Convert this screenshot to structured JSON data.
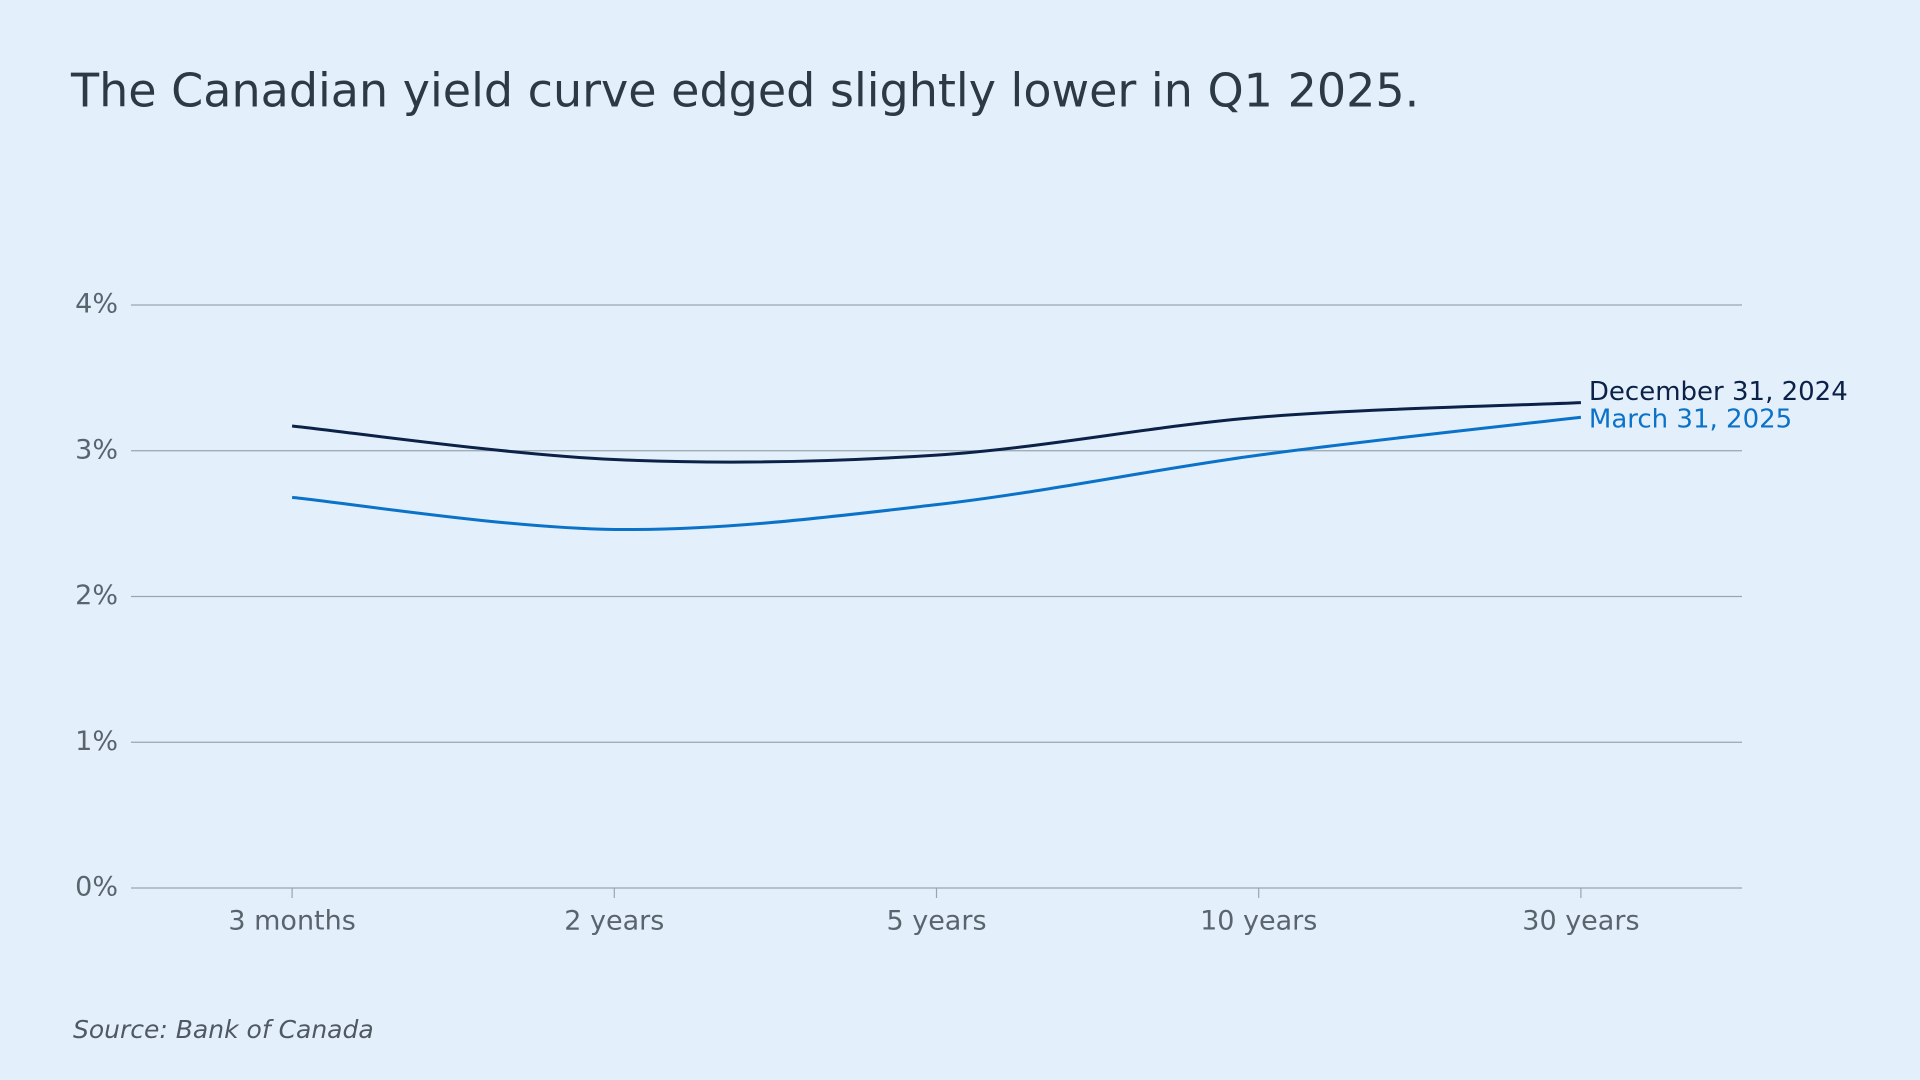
{
  "chart_data": {
    "type": "line",
    "title": "The Canadian yield curve edged slightly lower in Q1 2025.",
    "source": "Source: Bank of Canada",
    "categories": [
      "3 months",
      "2 years",
      "5 years",
      "10 years",
      "30 years"
    ],
    "series": [
      {
        "name": "December 31, 2024",
        "color": "#0b2147",
        "values": [
          3.17,
          2.94,
          2.97,
          3.23,
          3.33
        ]
      },
      {
        "name": "March 31, 2025",
        "color": "#0a72c9",
        "values": [
          2.68,
          2.46,
          2.63,
          2.97,
          3.23
        ]
      }
    ],
    "ylim": [
      0,
      4
    ],
    "yticks": [
      {
        "value": 0,
        "label": "0%"
      },
      {
        "value": 1,
        "label": "1%"
      },
      {
        "value": 2,
        "label": "2%"
      },
      {
        "value": 3,
        "label": "3%"
      },
      {
        "value": 4,
        "label": "4%"
      }
    ],
    "grid": true
  }
}
